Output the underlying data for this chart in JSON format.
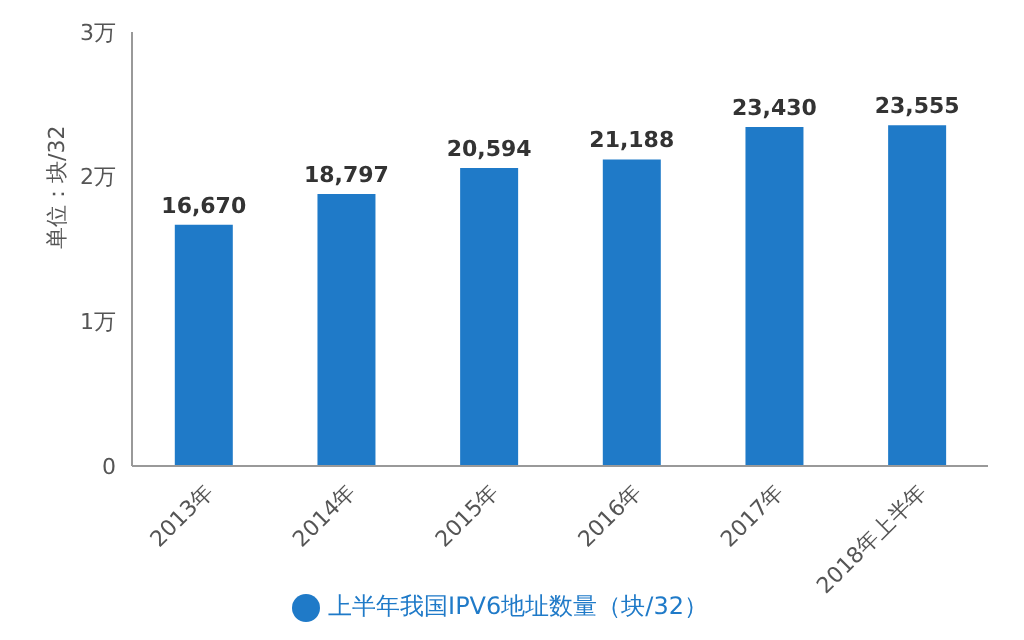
{
  "chart_data": {
    "type": "bar",
    "ylabel": "单位：块/32",
    "categories": [
      "2013年",
      "2014年",
      "2015年",
      "2016年",
      "2017年",
      "2018年上半年"
    ],
    "series": [
      {
        "name": "上半年我国IPV6地址数量（块/32）",
        "color": "#1f7ac8",
        "values": [
          1.667,
          1.8797,
          2.0594,
          2.1188,
          2.343,
          2.3555
        ]
      }
    ],
    "value_labels": [
      "16,670",
      "18,797",
      "20,594",
      "21,188",
      "23,430",
      "23,555"
    ],
    "ylim": [
      0,
      3
    ],
    "yticks": [
      0,
      {
        "value": 1,
        "label": "1万"
      },
      {
        "value": 2,
        "label": "2万"
      },
      {
        "value": 3,
        "label": "3万"
      }
    ],
    "grid": false,
    "legend": "bottom"
  }
}
